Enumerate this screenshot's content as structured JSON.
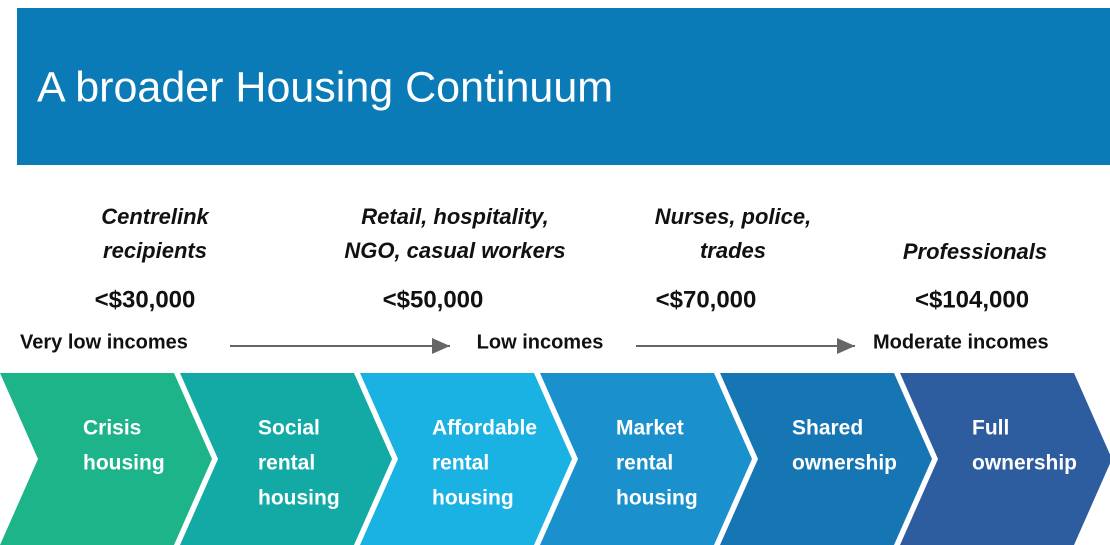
{
  "header": {
    "title": "A broader Housing Continuum"
  },
  "groups": [
    {
      "occupation": [
        "Centrelink",
        "recipients"
      ],
      "income": "<$30,000"
    },
    {
      "occupation": [
        "Retail, hospitality,",
        "NGO,  casual workers"
      ],
      "income": "<$50,000"
    },
    {
      "occupation": [
        "Nurses, police,",
        "trades"
      ],
      "income": "<$70,000"
    },
    {
      "occupation": [
        "Professionals"
      ],
      "income": "<$104,000"
    }
  ],
  "income_bands": [
    "Very low incomes",
    "Low incomes",
    "Moderate incomes"
  ],
  "stages": [
    {
      "label": [
        "Crisis",
        "housing"
      ],
      "color": "#1db48a"
    },
    {
      "label": [
        "Social",
        "rental",
        "housing"
      ],
      "color": "#13aaa6"
    },
    {
      "label": [
        "Affordable",
        "rental",
        "housing"
      ],
      "color": "#1ab2e2"
    },
    {
      "label": [
        "Market",
        "rental",
        "housing"
      ],
      "color": "#1a90cd"
    },
    {
      "label": [
        "Shared",
        "ownership"
      ],
      "color": "#1676b4"
    },
    {
      "label": [
        "Full",
        "ownership"
      ],
      "color": "#2d5c9f"
    }
  ]
}
